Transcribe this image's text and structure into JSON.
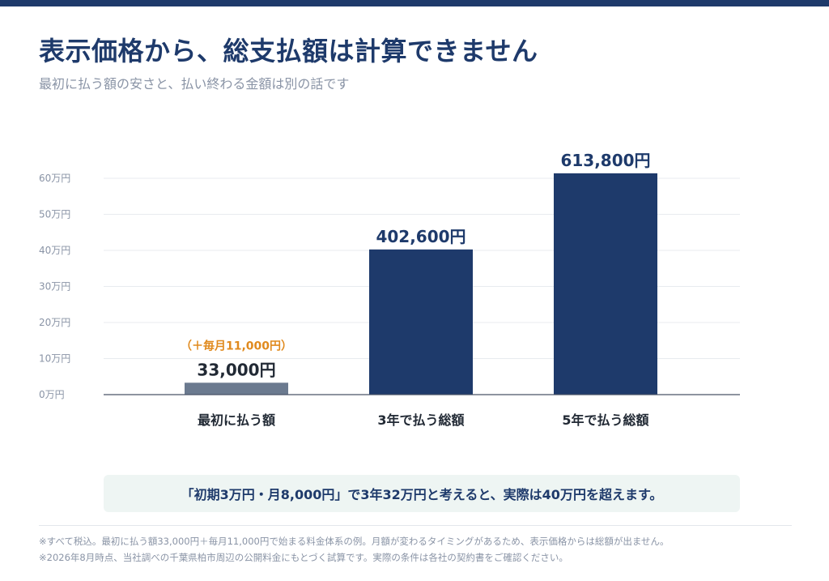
{
  "header": {
    "title": "表示価格から、総支払額は計算できません",
    "subtitle": "最初に払う額の安さと、払い終わる金額は別の話です"
  },
  "chart_data": {
    "type": "bar",
    "categories": [
      "最初に払う額",
      "3年で払う総額",
      "5年で払う総額"
    ],
    "values": [
      33000,
      402600,
      613800
    ],
    "value_labels": [
      "33,000円",
      "402,600円",
      "613,800円"
    ],
    "annotations": [
      {
        "category": "最初に払う額",
        "text": "（＋毎月11,000円）",
        "color": "#e08a1e"
      }
    ],
    "bar_colors": [
      "#6b7a8f",
      "#1e3a6b",
      "#1e3a6b"
    ],
    "yticks": [
      0,
      100000,
      200000,
      300000,
      400000,
      500000,
      600000
    ],
    "ytick_labels": [
      "0万円",
      "10万円",
      "20万円",
      "30万円",
      "40万円",
      "50万円",
      "60万円"
    ],
    "ylim": [
      0,
      600000
    ],
    "grid": true
  },
  "callout": {
    "text": "「初期3万円・月8,000円」で3年32万円と考えると、実際は40万円を超えます。"
  },
  "footnotes": [
    "※すべて税込。最初に払う額33,000円＋毎月11,000円で始まる料金体系の例。月額が変わるタイミングがあるため、表示価格からは総額が出ません。",
    "※2026年8月時点、当社調べの千葉県柏市周辺の公開料金にもとづく試算です。実際の条件は各社の契約書をご確認ください。"
  ],
  "colors": {
    "primary": "#1e3a6b",
    "muted": "#6b7a8f",
    "accent": "#e08a1e",
    "callout_bg": "#eef5f3"
  }
}
